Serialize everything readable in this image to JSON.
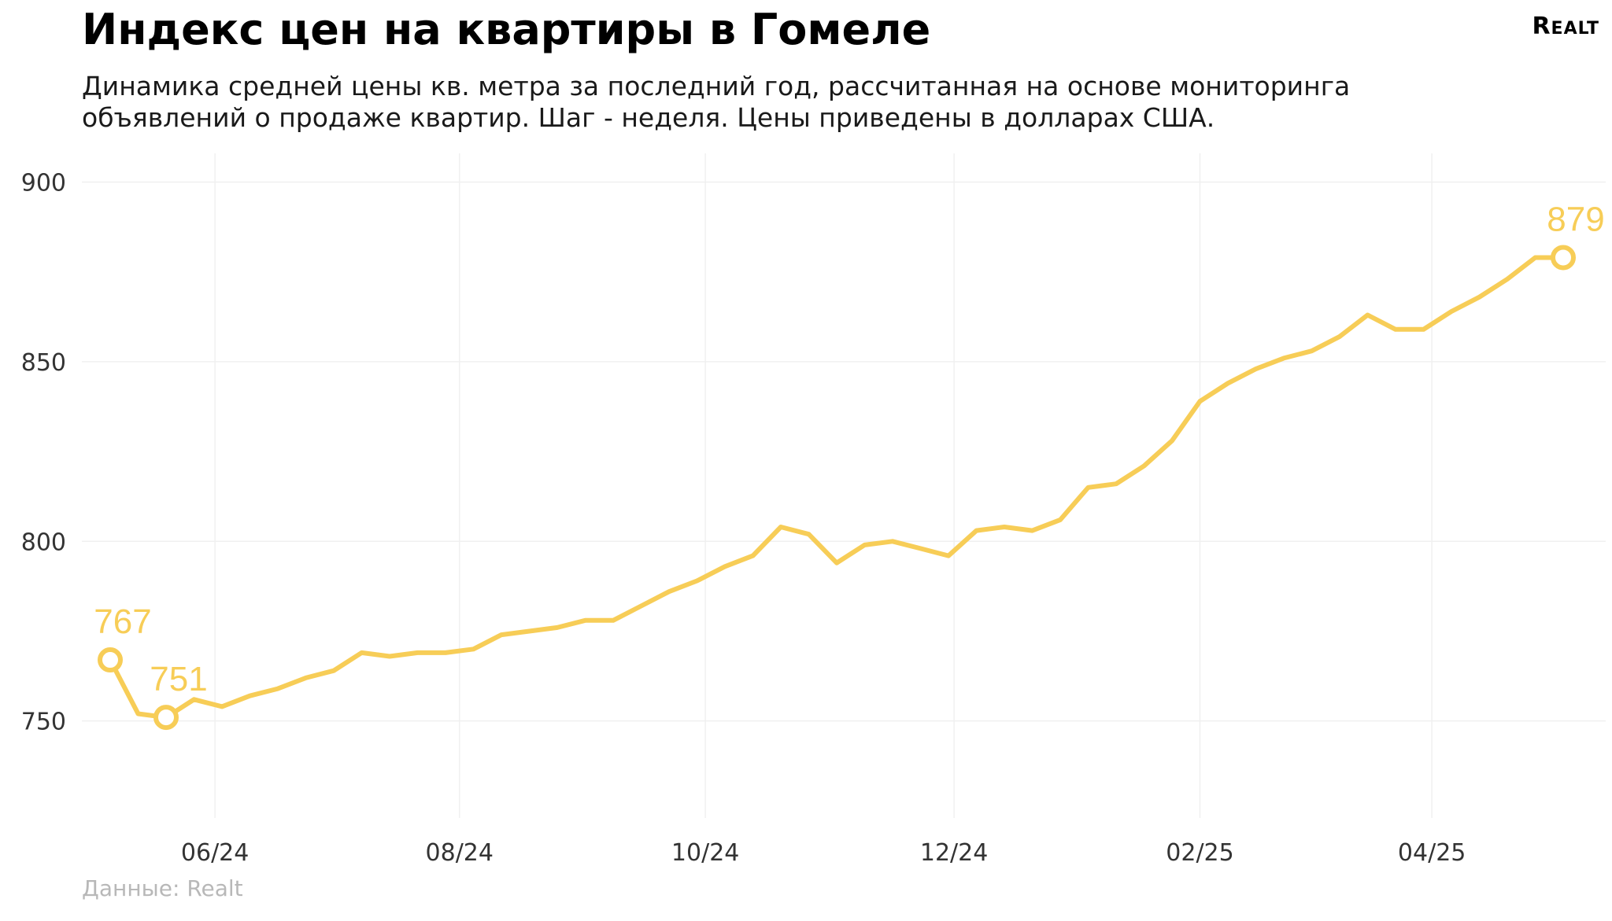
{
  "title": "Индекс цен на квартиры в Гомеле",
  "subtitle": "Динамика средней цены кв. метра за последний год, рассчитанная на основе мониторинга объявлений о продаже квартир. Шаг - неделя. Цены приведены в долларах США.",
  "logo": {
    "main": "R",
    "small": "EALT"
  },
  "source": "Данные: Realt",
  "colors": {
    "line": "#F7CD57",
    "grid": "#f0f0f0"
  },
  "chart_data": {
    "type": "line",
    "title": "Индекс цен на квартиры в Гомеле",
    "xlabel": "",
    "ylabel": "",
    "ylim": [
      723,
      908
    ],
    "y_ticks": [
      750,
      800,
      850,
      900
    ],
    "x_tick_labels": [
      "06/24",
      "08/24",
      "10/24",
      "12/24",
      "02/25",
      "04/25"
    ],
    "x_tick_weeks": [
      3.75,
      12.5,
      21.3,
      30.2,
      39.0,
      47.3
    ],
    "grid": true,
    "series": [
      {
        "values": [
          767,
          752,
          751,
          756,
          754,
          757,
          759,
          762,
          764,
          769,
          768,
          769,
          769,
          770,
          774,
          775,
          776,
          778,
          778,
          782,
          786,
          789,
          793,
          796,
          804,
          802,
          794,
          799,
          800,
          798,
          796,
          803,
          804,
          803,
          806,
          815,
          816,
          821,
          828,
          839,
          844,
          848,
          851,
          853,
          857,
          863,
          859,
          859,
          864,
          868,
          873,
          879,
          879
        ]
      }
    ],
    "annotations": [
      {
        "index": 0,
        "text": "767"
      },
      {
        "index": 2,
        "text": "751"
      },
      {
        "index": 52,
        "text": "879"
      }
    ]
  }
}
